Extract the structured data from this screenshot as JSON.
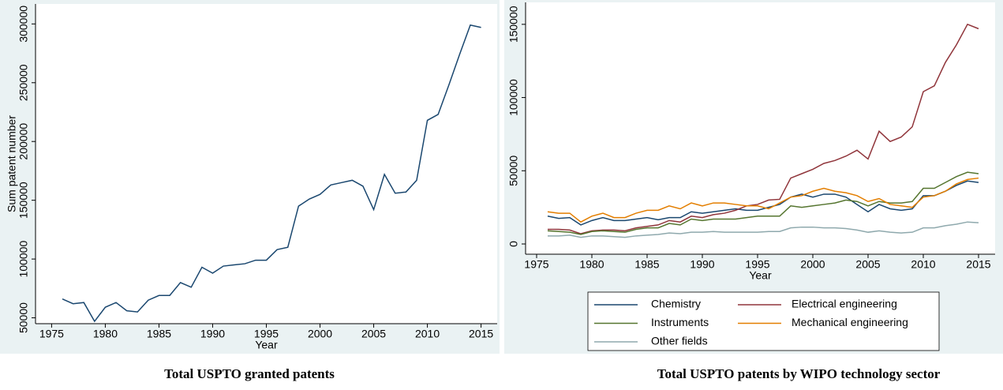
{
  "chart_data": [
    {
      "type": "line",
      "caption": "Total USPTO granted patents",
      "x_label": "Year",
      "y_label": "Sum patent number",
      "x": [
        1976,
        1977,
        1978,
        1979,
        1980,
        1981,
        1982,
        1983,
        1984,
        1985,
        1986,
        1987,
        1988,
        1989,
        1990,
        1991,
        1992,
        1993,
        1994,
        1995,
        1996,
        1997,
        1998,
        1999,
        2000,
        2001,
        2002,
        2003,
        2004,
        2005,
        2006,
        2007,
        2008,
        2009,
        2010,
        2011,
        2012,
        2013,
        2014,
        2015
      ],
      "values": [
        66000,
        62000,
        63000,
        47000,
        59000,
        63000,
        56000,
        55000,
        65000,
        69000,
        69000,
        80000,
        76000,
        93000,
        88000,
        94000,
        95000,
        96000,
        99000,
        99000,
        108000,
        110000,
        145000,
        151000,
        155000,
        163000,
        165000,
        167000,
        162000,
        142000,
        172000,
        156000,
        157000,
        167000,
        218000,
        223000,
        248000,
        274000,
        299000,
        297000
      ],
      "color": "#1a476f",
      "xlim": [
        1973.5,
        2016.5
      ],
      "xticks": [
        1975,
        1980,
        1985,
        1990,
        1995,
        2000,
        2005,
        2010,
        2015
      ],
      "ylim": [
        45000,
        317000
      ],
      "yticks": [
        50000,
        100000,
        150000,
        200000,
        250000,
        300000
      ]
    },
    {
      "type": "line",
      "caption": "Total USPTO patents by WIPO technology sector",
      "x_label": "Year",
      "x": [
        1976,
        1977,
        1978,
        1979,
        1980,
        1981,
        1982,
        1983,
        1984,
        1985,
        1986,
        1987,
        1988,
        1989,
        1990,
        1991,
        1992,
        1993,
        1994,
        1995,
        1996,
        1997,
        1998,
        1999,
        2000,
        2001,
        2002,
        2003,
        2004,
        2005,
        2006,
        2007,
        2008,
        2009,
        2010,
        2011,
        2012,
        2013,
        2014,
        2015
      ],
      "series": [
        {
          "name": "Chemistry",
          "color": "#1a476f",
          "values": [
            19000,
            17500,
            18000,
            13000,
            16000,
            18000,
            16000,
            16000,
            17000,
            18000,
            16500,
            18000,
            18000,
            22000,
            21000,
            22000,
            23000,
            24000,
            23000,
            23000,
            25000,
            27000,
            32000,
            34000,
            32000,
            34000,
            34000,
            32000,
            27000,
            22000,
            27000,
            24000,
            23000,
            24000,
            33000,
            33000,
            36000,
            40000,
            43000,
            42000
          ]
        },
        {
          "name": "Electrical engineering",
          "color": "#90353b",
          "values": [
            10000,
            10000,
            9500,
            7000,
            9000,
            9500,
            9500,
            9000,
            11000,
            12000,
            13000,
            16000,
            15000,
            19000,
            18000,
            20000,
            21000,
            23000,
            26000,
            27000,
            30000,
            30500,
            45000,
            48000,
            51000,
            55000,
            57000,
            60000,
            64000,
            58000,
            77000,
            70000,
            73000,
            80000,
            104000,
            108000,
            124000,
            136000,
            150000,
            147000
          ]
        },
        {
          "name": "Instruments",
          "color": "#55752f",
          "values": [
            9000,
            8500,
            8000,
            6500,
            8500,
            9000,
            8500,
            8000,
            10000,
            11000,
            11000,
            14000,
            13000,
            17000,
            16000,
            17000,
            17000,
            17000,
            18000,
            19000,
            19000,
            19000,
            26000,
            25000,
            26000,
            27000,
            28000,
            30000,
            29000,
            26000,
            29000,
            28000,
            28000,
            29000,
            38000,
            38000,
            42000,
            46000,
            49000,
            48000
          ]
        },
        {
          "name": "Mechanical engineering",
          "color": "#e37e00",
          "values": [
            22000,
            21000,
            21000,
            15000,
            19000,
            21000,
            18000,
            18000,
            21000,
            23000,
            23000,
            26000,
            24000,
            28000,
            26000,
            28000,
            28000,
            27000,
            26000,
            26000,
            24000,
            28000,
            32000,
            33000,
            36000,
            38000,
            36000,
            35000,
            33000,
            29000,
            31000,
            27000,
            26000,
            25000,
            32000,
            33000,
            36000,
            41000,
            44000,
            45000
          ]
        },
        {
          "name": "Other fields",
          "color": "#8fa9ad",
          "values": [
            5500,
            5500,
            6000,
            4500,
            5500,
            5500,
            5000,
            4500,
            5500,
            6000,
            6500,
            7500,
            7000,
            8000,
            8000,
            8500,
            8000,
            8000,
            8000,
            8000,
            8500,
            8500,
            11000,
            11500,
            11500,
            11000,
            11000,
            10500,
            9500,
            8000,
            9000,
            8000,
            7500,
            8000,
            11000,
            11000,
            12500,
            13500,
            15000,
            14500
          ]
        }
      ],
      "xlim": [
        1974,
        2016.5
      ],
      "xticks": [
        1975,
        1980,
        1985,
        1990,
        1995,
        2000,
        2005,
        2010,
        2015
      ],
      "ylim": [
        -7000,
        165000
      ],
      "yticks": [
        0,
        50000,
        100000,
        150000
      ],
      "legend_position": "bottom"
    }
  ]
}
